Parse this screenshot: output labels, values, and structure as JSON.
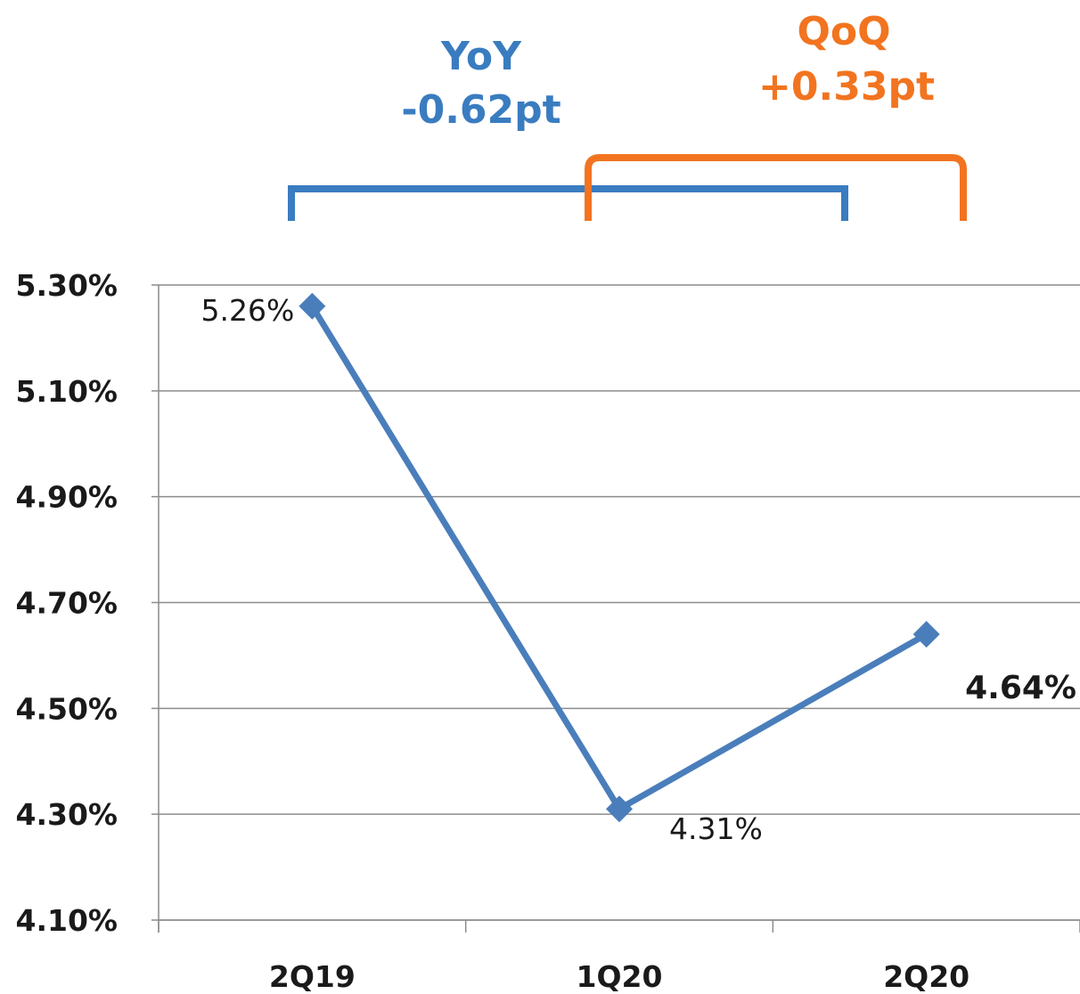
{
  "chart_data": {
    "type": "line",
    "categories": [
      "2Q19",
      "1Q20",
      "2Q20"
    ],
    "series": [
      {
        "values": [
          5.26,
          4.31,
          4.64
        ]
      }
    ],
    "data_labels": [
      "5.26%",
      "4.31%",
      "4.64%"
    ],
    "y_ticks": [
      "5.30%",
      "5.10%",
      "4.90%",
      "4.70%",
      "4.50%",
      "4.30%",
      "4.10%"
    ],
    "ylim": [
      4.1,
      5.3
    ],
    "grid": true,
    "series_color": "#4a7ebb",
    "annotations": {
      "yoy": {
        "line1": "YoY",
        "line2": "-0.62pt",
        "color": "#3a7cc0"
      },
      "qoq": {
        "line1": "QoQ",
        "line2": "+0.33pt",
        "color": "#f27420"
      }
    }
  }
}
